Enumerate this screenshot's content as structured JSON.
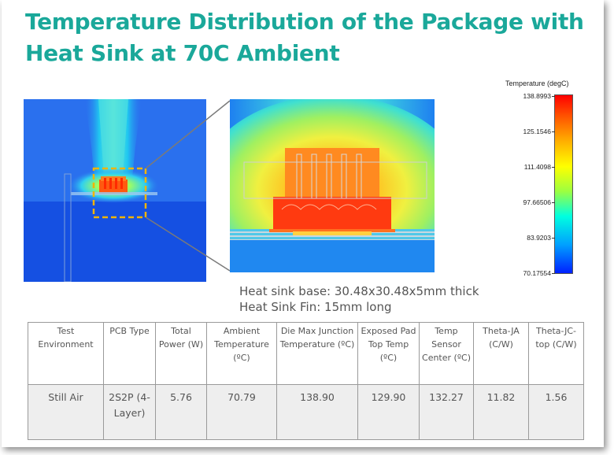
{
  "slide": {
    "title_line1": "Temperature Distribution of the Package with",
    "title_line2": "Heat Sink at 70C Ambient"
  },
  "legend": {
    "title": "Temperature (degC)",
    "ticks": [
      "138.8993",
      "125.1546",
      "111.4098",
      "97.66506",
      "83.9203",
      "70.17554"
    ]
  },
  "caption": {
    "line1": "Heat sink base: 30.48x30.48x5mm thick",
    "line2": "Heat Sink Fin: 15mm long"
  },
  "table": {
    "headers": [
      "Test Environment",
      "PCB Type",
      "Total Power (W)",
      "Ambient Temperature (ºC)",
      "Die Max Junction Temperature (ºC)",
      "Exposed Pad Top Temp (ºC)",
      "Temp Sensor Center (ºC)",
      "Theta-JA (C/W)",
      "Theta-JC-top (C/W)"
    ],
    "row": [
      "Still Air",
      "2S2P (4-Layer)",
      "5.76",
      "70.79",
      "138.90",
      "129.90",
      "132.27",
      "11.82",
      "1.56"
    ]
  },
  "colors": {
    "title": "#1aa89a",
    "caption": "#555555",
    "highlight_box": "#f0b400"
  }
}
